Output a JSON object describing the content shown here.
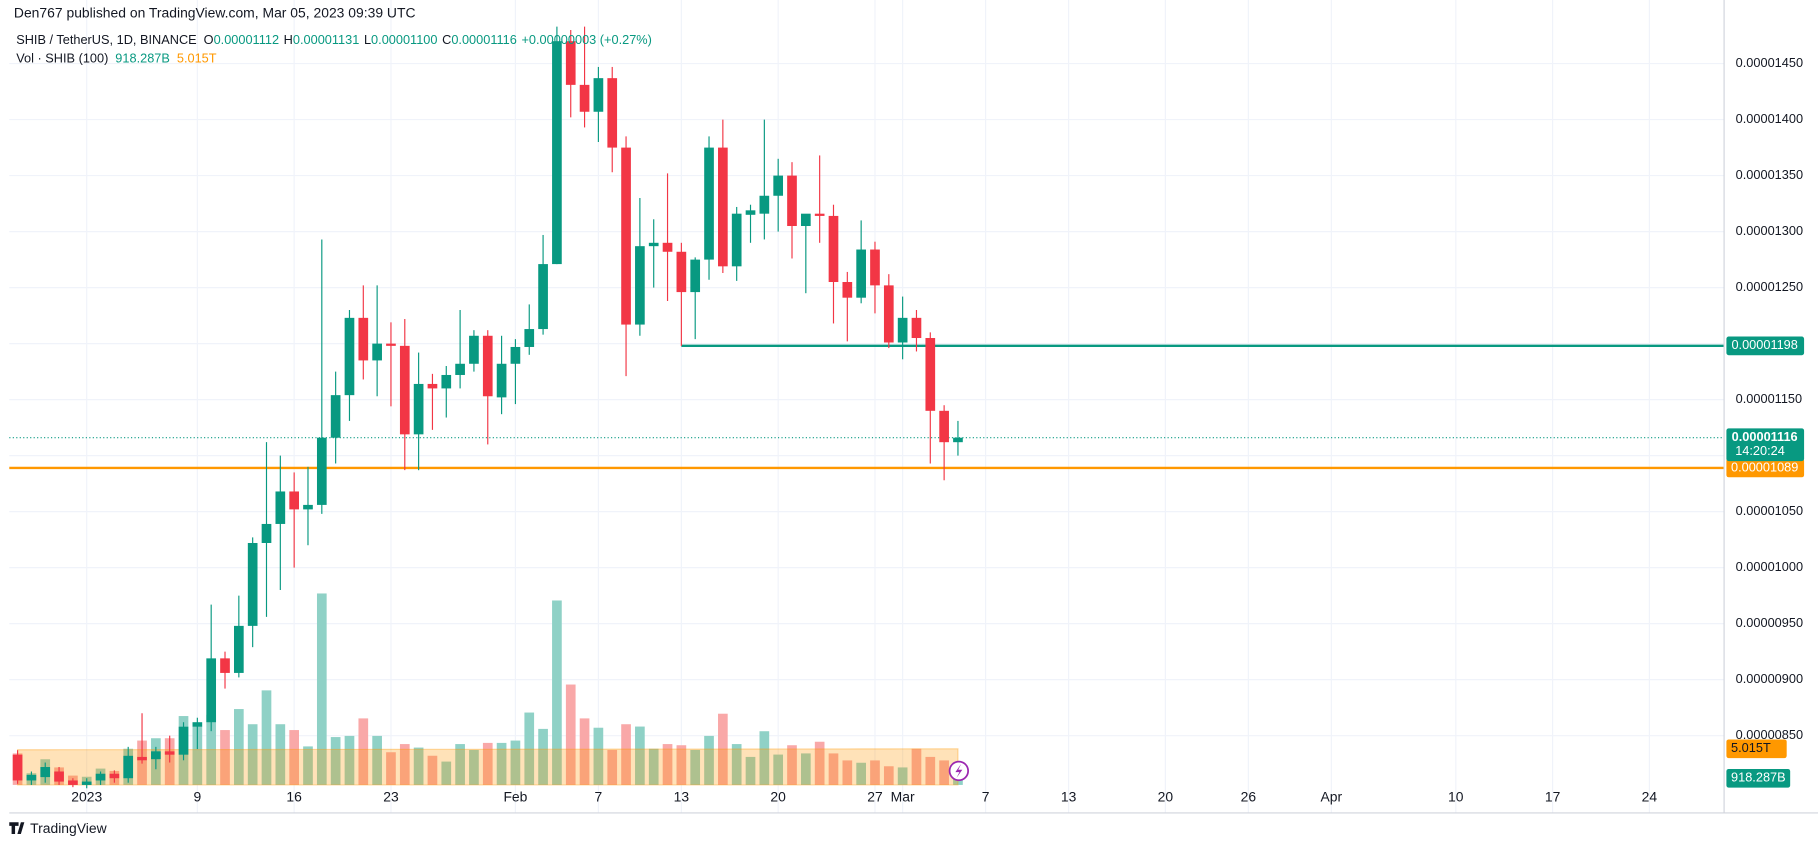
{
  "header": {
    "publisher": "Den767 published on TradingView.com, Mar 05, 2023 09:39 UTC",
    "symbol": "SHIB / TetherUS, 1D, BINANCE",
    "ohlc": [
      {
        "key": "O",
        "value": "0.00001112"
      },
      {
        "key": "H",
        "value": "0.00001131"
      },
      {
        "key": "L",
        "value": "0.00001100"
      },
      {
        "key": "C",
        "value": "0.00001116"
      }
    ],
    "change": "+0.00000003 (+0.27%)",
    "vol_name": "Vol · SHIB (100)"
  },
  "footer": "TradingView",
  "chart_data": {
    "type": "candlestick",
    "open": [
      8.33e-06,
      8.1e-06,
      8.13e-06,
      8.18e-06,
      8.1e-06,
      8.06e-06,
      8.1e-06,
      8.16e-06,
      8.12e-06,
      8.31e-06,
      8.29e-06,
      8.36e-06,
      8.33e-06,
      8.58e-06,
      8.62e-06,
      9.19e-06,
      9.06e-06,
      9.48e-06,
      1.022e-05,
      1.039e-05,
      1.068e-05,
      1.052e-05,
      1.056e-05,
      1.116e-05,
      1.154e-05,
      1.223e-05,
      1.185e-05,
      1.2e-05,
      1.198e-05,
      1.119e-05,
      1.164e-05,
      1.16e-05,
      1.172e-05,
      1.182e-05,
      1.207e-05,
      1.152e-05,
      1.182e-05,
      1.197e-05,
      1.213e-05,
      1.271e-05,
      1.47e-05,
      1.431e-05,
      1.407e-05,
      1.437e-05,
      1.375e-05,
      1.217e-05,
      1.287e-05,
      1.29e-05,
      1.282e-05,
      1.246e-05,
      1.275e-05,
      1.375e-05,
      1.269e-05,
      1.315e-05,
      1.316e-05,
      1.332e-05,
      1.35e-05,
      1.305e-05,
      1.316e-05,
      1.314e-05,
      1.255e-05,
      1.241e-05,
      1.284e-05,
      1.252e-05,
      1.201e-05,
      1.223e-05,
      1.205e-05,
      1.14e-05,
      1.112e-05
    ],
    "high": [
      8.37e-06,
      8.18e-06,
      8.26e-06,
      8.22e-06,
      8.12e-06,
      8.12e-06,
      8.18e-06,
      8.19e-06,
      8.4e-06,
      8.7e-06,
      8.4e-06,
      8.5e-06,
      8.62e-06,
      8.66e-06,
      9.67e-06,
      9.25e-06,
      9.75e-06,
      1.027e-05,
      1.112e-05,
      1.1e-05,
      1.085e-05,
      1.09e-05,
      1.293e-05,
      1.175e-05,
      1.23e-05,
      1.252e-05,
      1.252e-05,
      1.219e-05,
      1.222e-05,
      1.192e-05,
      1.173e-05,
      1.18e-05,
      1.23e-05,
      1.212e-05,
      1.212e-05,
      1.207e-05,
      1.204e-05,
      1.235e-05,
      1.297e-05,
      1.483e-05,
      1.48e-05,
      1.483e-05,
      1.447e-05,
      1.447e-05,
      1.385e-05,
      1.33e-05,
      1.311e-05,
      1.352e-05,
      1.29e-05,
      1.277e-05,
      1.385e-05,
      1.4e-05,
      1.322e-05,
      1.324e-05,
      1.4e-05,
      1.365e-05,
      1.362e-05,
      1.315e-05,
      1.368e-05,
      1.324e-05,
      1.264e-05,
      1.31e-05,
      1.291e-05,
      1.262e-05,
      1.242e-05,
      1.23e-05,
      1.21e-05,
      1.145e-05,
      1.131e-05
    ],
    "low": [
      8.07e-06,
      8.06e-06,
      8.08e-06,
      8.06e-06,
      8.04e-06,
      8.03e-06,
      8.06e-06,
      8.08e-06,
      8.08e-06,
      8.25e-06,
      8.2e-06,
      8.26e-06,
      8.28e-06,
      8.38e-06,
      8.54e-06,
      8.92e-06,
      9.02e-06,
      9.29e-06,
      9.56e-06,
      9.8e-06,
      1e-05,
      1.02e-05,
      1.048e-05,
      1.093e-05,
      1.131e-05,
      1.168e-05,
      1.153e-05,
      1.144e-05,
      1.087e-05,
      1.087e-05,
      1.123e-05,
      1.134e-05,
      1.16e-05,
      1.175e-05,
      1.11e-05,
      1.137e-05,
      1.146e-05,
      1.19e-05,
      1.208e-05,
      1.271e-05,
      1.402e-05,
      1.393e-05,
      1.38e-05,
      1.353e-05,
      1.171e-05,
      1.207e-05,
      1.25e-05,
      1.238e-05,
      1.198e-05,
      1.204e-05,
      1.257e-05,
      1.263e-05,
      1.256e-05,
      1.29e-05,
      1.293e-05,
      1.3e-05,
      1.276e-05,
      1.245e-05,
      1.29e-05,
      1.218e-05,
      1.202e-05,
      1.236e-05,
      1.227e-05,
      1.196e-05,
      1.186e-05,
      1.193e-05,
      1.093e-05,
      1.078e-05,
      1.1e-05
    ],
    "close": [
      8.1e-06,
      8.15e-06,
      8.22e-06,
      8.09e-06,
      8.06e-06,
      8.09e-06,
      8.16e-06,
      8.12e-06,
      8.32e-06,
      8.28e-06,
      8.36e-06,
      8.33e-06,
      8.58e-06,
      8.62e-06,
      9.19e-06,
      9.06e-06,
      9.48e-06,
      1.022e-05,
      1.039e-05,
      1.068e-05,
      1.052e-05,
      1.056e-05,
      1.116e-05,
      1.154e-05,
      1.223e-05,
      1.185e-05,
      1.2e-05,
      1.198e-05,
      1.119e-05,
      1.164e-05,
      1.16e-05,
      1.172e-05,
      1.182e-05,
      1.207e-05,
      1.153e-05,
      1.182e-05,
      1.197e-05,
      1.213e-05,
      1.271e-05,
      1.47e-05,
      1.431e-05,
      1.407e-05,
      1.437e-05,
      1.375e-05,
      1.217e-05,
      1.287e-05,
      1.29e-05,
      1.282e-05,
      1.246e-05,
      1.275e-05,
      1.375e-05,
      1.269e-05,
      1.316e-05,
      1.319e-05,
      1.332e-05,
      1.35e-05,
      1.305e-05,
      1.316e-05,
      1.314e-05,
      1.255e-05,
      1.241e-05,
      1.284e-05,
      1.252e-05,
      1.201e-05,
      1.223e-05,
      1.205e-05,
      1.14e-05,
      1.112e-05,
      1.116e-05
    ],
    "volume": [
      4374,
      1620,
      3564,
      2430,
      1296,
      1134,
      2268,
      1944,
      5022,
      6156,
      6480,
      6480,
      9558,
      8100,
      9720,
      7614,
      10530,
      8424,
      13122,
      8424,
      7614,
      5346,
      26568,
      6642,
      6804,
      9234,
      6804,
      4536,
      5670,
      5184,
      4050,
      3240,
      5670,
      4860,
      5832,
      5832,
      6156,
      10044,
      7776,
      25596,
      13932,
      9234,
      7938,
      4860,
      8424,
      8100,
      5022,
      5670,
      5508,
      4860,
      6804,
      9882,
      5670,
      3888,
      7452,
      4212,
      5508,
      4374,
      5994,
      4374,
      3402,
      3078,
      3402,
      2592,
      2430,
      5022,
      3888,
      3402,
      918.287
    ],
    "vol_ma": [
      4880,
      4882,
      4884,
      4886,
      4888,
      4890,
      4892,
      4894,
      4896,
      4898,
      4900,
      4902,
      4904,
      4906,
      4908,
      4910,
      4912,
      4914,
      4916,
      4918,
      4920,
      4922,
      4924,
      4926,
      4928,
      4930,
      4932,
      4934,
      4936,
      4938,
      4940,
      4942,
      4944,
      4946,
      4948,
      4950,
      4952,
      4954,
      4956,
      4958,
      4960,
      4962,
      4964,
      4966,
      4968,
      4970,
      4972,
      4974,
      4976,
      4978,
      4980,
      4982,
      4984,
      4986,
      4988,
      4990,
      4992,
      4994,
      4996,
      4998,
      5000,
      5002,
      5004,
      5006,
      5008,
      5010,
      5012,
      5014,
      5015
    ],
    "vol_last_label": "918.287B",
    "vol_ma_label": "5.015T",
    "vol_ylim": [
      0,
      106000
    ],
    "up_color": "#089981",
    "down_color": "#f23645",
    "vol_up_color": "#8fd1c6",
    "vol_down_color": "#f9a8a8",
    "vol_ma_color": "#ff9800",
    "xlim": [
      -0.6,
      123.4
    ],
    "xticks": [
      {
        "value": 5,
        "label": "2023"
      },
      {
        "value": 13,
        "label": "9"
      },
      {
        "value": 20,
        "label": "16"
      },
      {
        "value": 27,
        "label": "23"
      },
      {
        "value": 36,
        "label": "Feb"
      },
      {
        "value": 42,
        "label": "7"
      },
      {
        "value": 48,
        "label": "13"
      },
      {
        "value": 55,
        "label": "20"
      },
      {
        "value": 62,
        "label": "27"
      },
      {
        "value": 64,
        "label": "Mar"
      },
      {
        "value": 70,
        "label": "7"
      },
      {
        "value": 76,
        "label": "13"
      },
      {
        "value": 83,
        "label": "20"
      },
      {
        "value": 89,
        "label": "26"
      },
      {
        "value": 95,
        "label": "Apr"
      },
      {
        "value": 104,
        "label": "10"
      },
      {
        "value": 111,
        "label": "17"
      },
      {
        "value": 118,
        "label": "24"
      }
    ],
    "ylim": [
      8.06e-06,
      1.488e-05
    ],
    "yticks": [
      {
        "value": 8.5e-06,
        "label": "0.00000850"
      },
      {
        "value": 9e-06,
        "label": "0.00000900"
      },
      {
        "value": 9.5e-06,
        "label": "0.00000950"
      },
      {
        "value": 1e-05,
        "label": "0.00001000"
      },
      {
        "value": 1.05e-05,
        "label": "0.00001050"
      },
      {
        "value": 1.1e-05,
        "label": "0.00001100"
      },
      {
        "value": 1.15e-05,
        "label": "0.00001150"
      },
      {
        "value": 1.2e-05,
        "label": "0.00001200"
      },
      {
        "value": 1.25e-05,
        "label": "0.00001250"
      },
      {
        "value": 1.3e-05,
        "label": "0.00001300"
      },
      {
        "value": 1.35e-05,
        "label": "0.00001350"
      },
      {
        "value": 1.4e-05,
        "label": "0.00001400"
      },
      {
        "value": 1.45e-05,
        "label": "0.00001450"
      }
    ],
    "grid": true,
    "levels": [
      {
        "value": 1.198e-05,
        "color": "#089981",
        "x0": 48
      },
      {
        "value": 1.089e-05,
        "color": "#ff9800",
        "x0": -0.6
      }
    ],
    "last": {
      "value": 1.116e-05,
      "countdown": "14:20:24"
    }
  }
}
